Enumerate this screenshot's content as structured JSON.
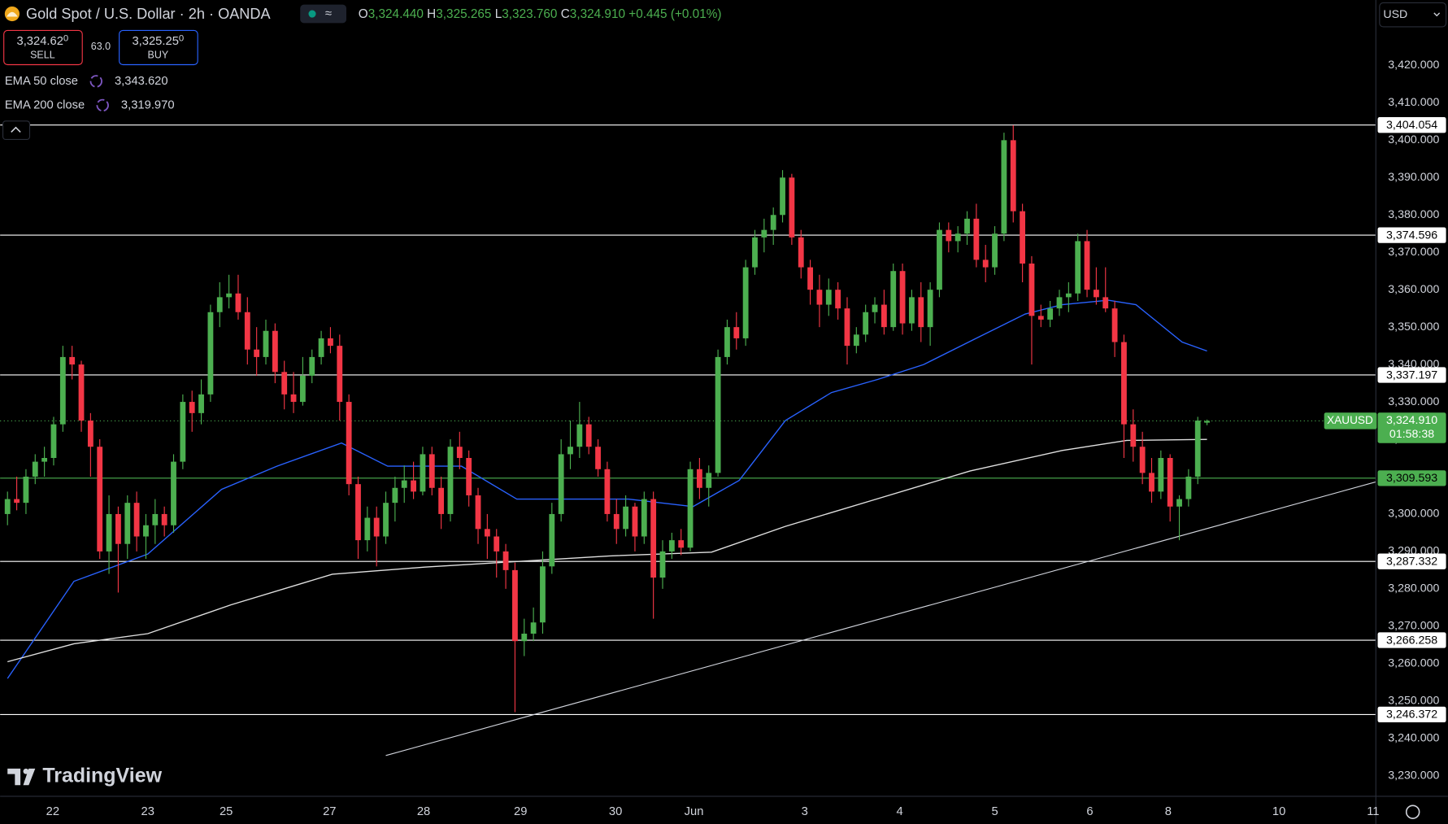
{
  "chart_data": {
    "type": "candlestick",
    "title": "Gold Spot / U.S. Dollar · 2h · OANDA",
    "quote": [
      {
        "key": "O",
        "value": "3,324.440"
      },
      {
        "key": "H",
        "value": "3,325.265"
      },
      {
        "key": "L",
        "value": "3,323.760"
      },
      {
        "key": "C",
        "value": "3,324.910"
      }
    ],
    "change": "+0.445 (+0.01%)",
    "sell": {
      "price": "3,324.62",
      "digit": "0",
      "label": "SELL"
    },
    "spread": "63.0",
    "buy": {
      "price": "3,325.25",
      "digit": "0",
      "label": "BUY"
    },
    "currency": "USD",
    "logo": "TradingView",
    "up_color": "#4caf50",
    "down_color": "#f23645",
    "xlim": [
      -0.8,
      148.3
    ],
    "ylim": [
      3224.5,
      3437.5
    ],
    "grid": false,
    "xticks": [
      {
        "value": 4.9,
        "label": "22"
      },
      {
        "value": 15.2,
        "label": "23"
      },
      {
        "value": 23.7,
        "label": "25"
      },
      {
        "value": 34.9,
        "label": "27"
      },
      {
        "value": 45.1,
        "label": "28"
      },
      {
        "value": 55.6,
        "label": "29"
      },
      {
        "value": 65.9,
        "label": "30"
      },
      {
        "value": 74.4,
        "label": "Jun"
      },
      {
        "value": 86.4,
        "label": "3"
      },
      {
        "value": 96.7,
        "label": "4"
      },
      {
        "value": 107,
        "label": "5"
      },
      {
        "value": 117.3,
        "label": "6"
      },
      {
        "value": 125.8,
        "label": "8"
      },
      {
        "value": 137.8,
        "label": "10"
      },
      {
        "value": 148,
        "label": "11"
      }
    ],
    "yticks": [
      {
        "value": 3230,
        "label": "3,230.000"
      },
      {
        "value": 3240,
        "label": "3,240.000"
      },
      {
        "value": 3250,
        "label": "3,250.000"
      },
      {
        "value": 3260,
        "label": "3,260.000"
      },
      {
        "value": 3270,
        "label": "3,270.000"
      },
      {
        "value": 3280,
        "label": "3,280.000"
      },
      {
        "value": 3290,
        "label": "3,290.000"
      },
      {
        "value": 3300,
        "label": "3,300.000"
      },
      {
        "value": 3310,
        "label": "3,310.000"
      },
      {
        "value": 3320,
        "label": "3,320.000"
      },
      {
        "value": 3330,
        "label": "3,330.000"
      },
      {
        "value": 3340,
        "label": "3,340.000"
      },
      {
        "value": 3350,
        "label": "3,350.000"
      },
      {
        "value": 3360,
        "label": "3,360.000"
      },
      {
        "value": 3370,
        "label": "3,370.000"
      },
      {
        "value": 3380,
        "label": "3,380.000"
      },
      {
        "value": 3390,
        "label": "3,390.000"
      },
      {
        "value": 3400,
        "label": "3,400.000"
      },
      {
        "value": 3410,
        "label": "3,410.000"
      },
      {
        "value": 3420,
        "label": "3,420.000"
      }
    ],
    "open": [
      3300,
      3304,
      3303,
      3310,
      3314,
      3315,
      3324,
      3342,
      3340,
      3325,
      3318,
      3290,
      3300,
      3292,
      3303,
      3294,
      3297,
      3300,
      3297,
      3314,
      3330,
      3327,
      3332,
      3354,
      3358,
      3359,
      3354,
      3344,
      3342,
      3349,
      3338,
      3332,
      3330,
      3337,
      3342,
      3347,
      3345,
      3330,
      3308,
      3293,
      3299,
      3294,
      3303,
      3307,
      3309,
      3306,
      3316,
      3307,
      3300,
      3318,
      3315,
      3305,
      3296,
      3294,
      3290,
      3285,
      3266,
      3268,
      3271,
      3286,
      3300,
      3316,
      3318,
      3324,
      3318,
      3312,
      3300,
      3296,
      3302,
      3294,
      3304,
      3283,
      3290,
      3293,
      3291,
      3312,
      3307,
      3311,
      3342,
      3350,
      3347,
      3366,
      3374,
      3376,
      3380,
      3390,
      3374,
      3366,
      3360,
      3356,
      3360,
      3355,
      3345,
      3348,
      3354,
      3356,
      3350,
      3365,
      3351,
      3358,
      3350,
      3360,
      3376,
      3373,
      3375,
      3379,
      3368,
      3366,
      3375,
      3400,
      3381,
      3367,
      3353,
      3352,
      3355,
      3358,
      3359,
      3373,
      3360,
      3358,
      3355,
      3346,
      3324,
      3318,
      3311,
      3306,
      3315,
      3302,
      3304,
      3310,
      3324.44
    ],
    "high": [
      3306,
      3310,
      3312,
      3316,
      3318,
      3326,
      3345,
      3345,
      3341,
      3327,
      3320,
      3305,
      3302,
      3305,
      3306,
      3300,
      3304,
      3302,
      3316,
      3332,
      3333,
      3336,
      3356,
      3362,
      3364,
      3364,
      3358,
      3350,
      3352,
      3351,
      3341,
      3338,
      3342,
      3344,
      3349,
      3350,
      3348,
      3332,
      3310,
      3302,
      3302,
      3306,
      3310,
      3313,
      3314,
      3318,
      3318,
      3310,
      3320,
      3322,
      3317,
      3307,
      3300,
      3296,
      3292,
      3287,
      3272,
      3275,
      3290,
      3303,
      3320,
      3325,
      3330,
      3326,
      3320,
      3314,
      3304,
      3305,
      3303,
      3306,
      3306,
      3293,
      3295,
      3296,
      3314,
      3315,
      3313,
      3344,
      3352,
      3354,
      3368,
      3376,
      3379,
      3382,
      3392,
      3391,
      3376,
      3368,
      3364,
      3363,
      3362,
      3358,
      3350,
      3356,
      3358,
      3360,
      3367,
      3367,
      3360,
      3362,
      3362,
      3378,
      3378,
      3377,
      3381,
      3383,
      3372,
      3377,
      3402,
      3404,
      3383,
      3369,
      3356,
      3357,
      3360,
      3362,
      3375,
      3376,
      3366,
      3366,
      3357,
      3348,
      3328,
      3322,
      3315,
      3317,
      3316,
      3305,
      3312,
      3326,
      3325.265
    ],
    "low": [
      3297,
      3301,
      3300,
      3308,
      3310,
      3313,
      3322,
      3336,
      3322,
      3310,
      3288,
      3284,
      3279,
      3288,
      3290,
      3288,
      3292,
      3294,
      3295,
      3312,
      3322,
      3324,
      3330,
      3350,
      3355,
      3352,
      3340,
      3337,
      3340,
      3335,
      3328,
      3327,
      3329,
      3335,
      3340,
      3343,
      3325,
      3305,
      3288,
      3290,
      3286,
      3292,
      3298,
      3303,
      3304,
      3305,
      3305,
      3296,
      3298,
      3312,
      3302,
      3292,
      3288,
      3283,
      3280,
      3247,
      3262,
      3266,
      3268,
      3284,
      3298,
      3312,
      3315,
      3316,
      3310,
      3298,
      3292,
      3294,
      3290,
      3292,
      3272,
      3280,
      3288,
      3289,
      3290,
      3304,
      3302,
      3310,
      3340,
      3344,
      3345,
      3364,
      3370,
      3372,
      3378,
      3372,
      3363,
      3356,
      3350,
      3353,
      3352,
      3340,
      3343,
      3346,
      3351,
      3348,
      3349,
      3348,
      3349,
      3346,
      3345,
      3358,
      3370,
      3370,
      3372,
      3366,
      3362,
      3364,
      3373,
      3378,
      3362,
      3340,
      3350,
      3350,
      3353,
      3354,
      3357,
      3358,
      3356,
      3354,
      3342,
      3315,
      3314,
      3308,
      3303,
      3304,
      3298,
      3293,
      3302,
      3308,
      3323.76
    ],
    "close": [
      3304,
      3303,
      3310,
      3314,
      3315,
      3324,
      3342,
      3340,
      3325,
      3318,
      3290,
      3300,
      3292,
      3303,
      3294,
      3297,
      3300,
      3297,
      3314,
      3330,
      3327,
      3332,
      3354,
      3358,
      3359,
      3354,
      3344,
      3342,
      3349,
      3338,
      3332,
      3330,
      3337,
      3342,
      3347,
      3345,
      3330,
      3308,
      3293,
      3299,
      3294,
      3303,
      3307,
      3309,
      3306,
      3316,
      3307,
      3300,
      3318,
      3315,
      3305,
      3296,
      3294,
      3290,
      3285,
      3266,
      3268,
      3271,
      3286,
      3300,
      3316,
      3318,
      3324,
      3318,
      3312,
      3300,
      3296,
      3302,
      3294,
      3304,
      3283,
      3290,
      3293,
      3291,
      3312,
      3307,
      3311,
      3342,
      3350,
      3347,
      3366,
      3374,
      3376,
      3380,
      3390,
      3374,
      3366,
      3360,
      3356,
      3360,
      3355,
      3345,
      3348,
      3354,
      3356,
      3350,
      3365,
      3351,
      3358,
      3350,
      3360,
      3376,
      3373,
      3375,
      3379,
      3368,
      3366,
      3375,
      3400,
      3381,
      3367,
      3353,
      3352,
      3355,
      3358,
      3359,
      3373,
      3360,
      3358,
      3355,
      3346,
      3324,
      3318,
      3311,
      3306,
      3315,
      3302,
      3304,
      3310,
      3325,
      3324.91
    ],
    "ema_lines": [
      {
        "name": "EMA 50 close",
        "color": "#2962ff",
        "value_label": "3,343.620",
        "x": [
          0,
          7.2,
          15.2,
          23.2,
          29.2,
          36.2,
          41.2,
          49.2,
          55.2,
          60.3,
          67.3,
          74.3,
          79.3,
          84.3,
          89.3,
          94.3,
          99.3,
          105.3,
          110.3,
          114.3,
          119.3,
          122.3,
          127.3,
          130
        ],
        "values": [
          3256,
          3282,
          3289.3,
          3306.6,
          3312.8,
          3319,
          3312.8,
          3312.8,
          3304,
          3304,
          3304,
          3302,
          3309,
          3325,
          3332.5,
          3336,
          3340,
          3347.4,
          3353.5,
          3356,
          3357.2,
          3356,
          3346,
          3343.62
        ]
      },
      {
        "name": "EMA 200 close",
        "color": "#e0e0e0",
        "value_label": "3,319.970",
        "x": [
          0,
          7.2,
          15.2,
          24.2,
          35.2,
          45.2,
          55.2,
          65.3,
          76.3,
          84.3,
          94.3,
          104.3,
          114.3,
          121.3,
          130
        ],
        "values": [
          3260.5,
          3265.3,
          3268,
          3275.7,
          3283.9,
          3285.8,
          3287.3,
          3288.8,
          3289.8,
          3296.7,
          3304.1,
          3311.5,
          3317,
          3319.7,
          3319.97
        ]
      }
    ],
    "trendline": {
      "x": [
        41,
        148.3
      ],
      "values": [
        3235.4,
        3308.6
      ]
    },
    "levels": [
      {
        "value": 3404.054,
        "label": "3,404.054",
        "color": "#ffffff"
      },
      {
        "value": 3374.596,
        "label": "3,374.596",
        "color": "#ffffff"
      },
      {
        "value": 3337.197,
        "label": "3,337.197",
        "color": "#ffffff"
      },
      {
        "value": 3309.593,
        "label": "3,309.593",
        "color": "#4caf50"
      },
      {
        "value": 3287.332,
        "label": "3,287.332",
        "color": "#ffffff"
      },
      {
        "value": 3266.258,
        "label": "3,266.258",
        "color": "#ffffff"
      },
      {
        "value": 3246.372,
        "label": "3,246.372",
        "color": "#ffffff"
      }
    ],
    "last_price": {
      "symbol": "XAUUSD",
      "value": 3324.91,
      "label": "3,324.910",
      "countdown": "01:58:38"
    }
  }
}
